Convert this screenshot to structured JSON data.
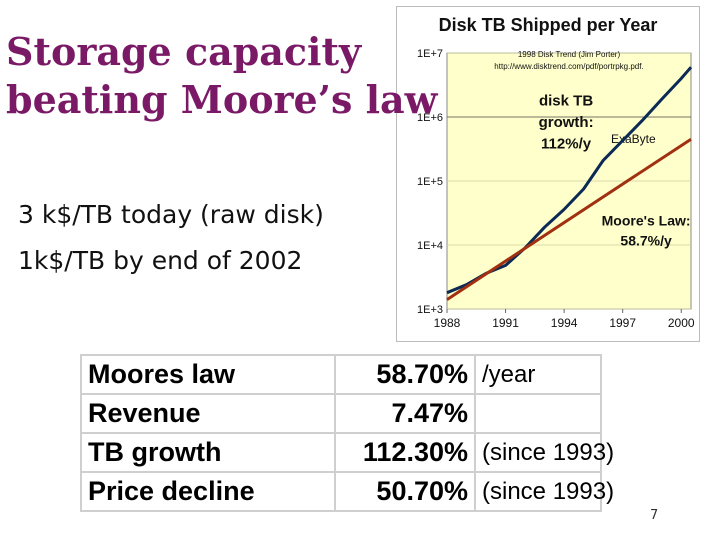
{
  "slide": {
    "title_line1": "Storage capacity",
    "title_line2": "beating Moore’s law",
    "bullets": [
      "3 k$/TB today (raw disk)",
      "1k$/TB by end of 2002"
    ],
    "page_number": "7"
  },
  "table": {
    "rows": [
      {
        "metric": "Moores law",
        "value": "58.70%",
        "note": "/year"
      },
      {
        "metric": "Revenue",
        "value": "7.47%",
        "note": ""
      },
      {
        "metric": "TB growth",
        "value": "112.30%",
        "note": "(since 1993)"
      },
      {
        "metric": "Price decline",
        "value": "50.70%",
        "note": "(since 1993)"
      }
    ]
  },
  "colors": {
    "title": "#7a1a66",
    "plot_bg": "#ffffcc",
    "disk_line": "#0b2a55",
    "moore_line": "#a03010"
  },
  "chart_data": {
    "type": "line",
    "title": "Disk TB Shipped per Year",
    "subtitle_line1": "1998 Disk Trend (Jim Porter)",
    "subtitle_line2": "http://www.disktrend.com/pdf/portrpkg.pdf.",
    "y_scale": "log",
    "ylim": [
      1000,
      10000000
    ],
    "xlim": [
      1988,
      2000.5
    ],
    "y_ticks": [
      {
        "value": 1000,
        "label": "1E+3"
      },
      {
        "value": 10000,
        "label": "1E+4"
      },
      {
        "value": 100000,
        "label": "1E+5"
      },
      {
        "value": 1000000,
        "label": "1E+6"
      },
      {
        "value": 10000000,
        "label": "1E+7"
      }
    ],
    "x_ticks": [
      {
        "value": 1988,
        "label": "1988"
      },
      {
        "value": 1991,
        "label": "1991"
      },
      {
        "value": 1994,
        "label": "1994"
      },
      {
        "value": 1997,
        "label": "1997"
      },
      {
        "value": 2000,
        "label": "2000"
      }
    ],
    "reference_lines": [
      {
        "value": 1000000,
        "label": "ExaByte"
      }
    ],
    "series": [
      {
        "name": "disk TB growth: 112%/y",
        "label_lines": [
          "disk TB",
          "growth:",
          "112%/y"
        ],
        "color": "#0b2a55",
        "x": [
          1988,
          1989,
          1990,
          1991,
          1992,
          1993,
          1994,
          1995,
          1996,
          1997,
          1998,
          1999,
          2000,
          2000.5
        ],
        "y": [
          1800,
          2400,
          3600,
          4800,
          9000,
          19000,
          36000,
          75000,
          210000,
          430000,
          880000,
          1900000,
          4000000,
          6000000
        ]
      },
      {
        "name": "Moore's Law: 58.7%/y",
        "label_lines": [
          "Moore's Law:",
          "58.7%/y"
        ],
        "color": "#a03010",
        "x": [
          1988,
          2000.5
        ],
        "y": [
          1400,
          450000
        ]
      }
    ]
  }
}
